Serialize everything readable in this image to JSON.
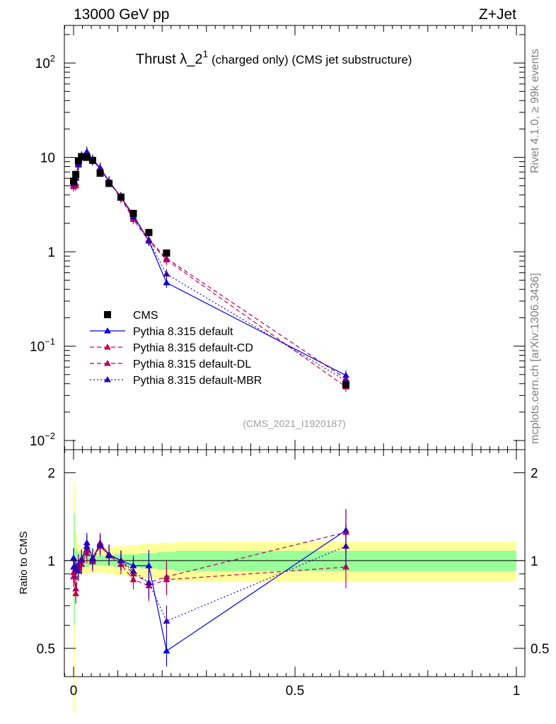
{
  "header": {
    "left": "13000 GeV pp",
    "right": "Z+Jet"
  },
  "side": {
    "rivet": "Rivet 4.1.0, ≥ 99k events",
    "mcplots": "mcplots.cern.ch [arXiv:1306.3436]"
  },
  "plot": {
    "title_main": "Thrust λ_2",
    "title_sup": "1",
    "title_sub": " (charged only) (CMS jet substructure)",
    "analysis": "(CMS_2021_I1920187)"
  },
  "ratio": {
    "ylabel": "Ratio to CMS"
  },
  "chart_data": [
    {
      "type": "scatter",
      "title": "Thrust λ_2^1 (charged only) (CMS jet substructure)",
      "xlabel": "",
      "ylabel": "",
      "yscale": "log",
      "xlim": [
        -0.02,
        1.0
      ],
      "ylim": [
        0.008,
        250
      ],
      "y_tick_labels": [
        "10^-2",
        "10^-1",
        "1",
        "10",
        "10^2"
      ],
      "legend_position": "center-left",
      "series": [
        {
          "name": "CMS",
          "color": "#000000",
          "marker": "square",
          "x": [
            0.0,
            0.005,
            0.011,
            0.018,
            0.03,
            0.043,
            0.06,
            0.08,
            0.107,
            0.135,
            0.17,
            0.21,
            0.615
          ],
          "y": [
            5.6,
            6.6,
            9.2,
            10.2,
            10.0,
            9.3,
            6.8,
            5.3,
            3.8,
            2.55,
            1.6,
            0.97,
            0.039
          ]
        },
        {
          "name": "Pythia 8.315 default",
          "color": "#0000dd",
          "line": "solid",
          "x": [
            0.0,
            0.005,
            0.011,
            0.018,
            0.03,
            0.043,
            0.06,
            0.08,
            0.107,
            0.135,
            0.17,
            0.21,
            0.615
          ],
          "y": [
            5.7,
            6.0,
            8.3,
            9.8,
            11.5,
            9.5,
            7.8,
            5.6,
            3.8,
            2.45,
            1.3,
            0.47,
            0.049
          ]
        },
        {
          "name": "Pythia 8.315 default-CD",
          "color": "#cc0044",
          "line": "dashed",
          "x": [
            0.0,
            0.005,
            0.011,
            0.018,
            0.03,
            0.043,
            0.06,
            0.08,
            0.107,
            0.135,
            0.17,
            0.21,
            0.615
          ],
          "y": [
            5.1,
            5.0,
            8.6,
            9.9,
            10.6,
            9.3,
            7.6,
            5.5,
            3.7,
            2.2,
            1.3,
            0.82,
            0.037
          ]
        },
        {
          "name": "Pythia 8.315 default-DL",
          "color": "#aa0066",
          "line": "dashed",
          "x": [
            0.0,
            0.005,
            0.011,
            0.018,
            0.03,
            0.043,
            0.06,
            0.08,
            0.107,
            0.135,
            0.17,
            0.21,
            0.615
          ],
          "y": [
            4.9,
            5.3,
            8.8,
            10.2,
            10.9,
            9.2,
            7.8,
            5.5,
            3.8,
            2.3,
            1.35,
            0.85,
            0.045
          ]
        },
        {
          "name": "Pythia 8.315 default-MBR",
          "color": "#3300aa",
          "line": "dotted",
          "x": [
            0.0,
            0.005,
            0.011,
            0.018,
            0.03,
            0.043,
            0.06,
            0.08,
            0.107,
            0.135,
            0.17,
            0.21,
            0.615
          ],
          "y": [
            5.3,
            6.2,
            8.5,
            10.3,
            11.2,
            9.4,
            7.7,
            5.5,
            3.8,
            2.35,
            1.3,
            0.58,
            0.043
          ]
        }
      ]
    },
    {
      "type": "line",
      "title": "Ratio to CMS",
      "xlabel": "",
      "ylabel": "Ratio to CMS",
      "yscale": "log",
      "xlim": [
        -0.02,
        1.0
      ],
      "ylim": [
        0.4,
        2.4
      ],
      "x_tick_labels": [
        "0",
        "0.5",
        "1"
      ],
      "y_tick_labels": [
        "0.5",
        "1",
        "2"
      ],
      "bands": {
        "edges": [
          0.0,
          0.003,
          0.008,
          0.014,
          0.022,
          0.036,
          0.05,
          0.07,
          0.09,
          0.12,
          0.15,
          0.19,
          0.23,
          1.0
        ],
        "green_lo": [
          0.6,
          0.9,
          0.93,
          0.95,
          0.95,
          0.96,
          0.96,
          0.96,
          0.95,
          0.95,
          0.94,
          0.93,
          0.92
        ],
        "green_hi": [
          1.45,
          1.1,
          1.07,
          1.05,
          1.05,
          1.04,
          1.04,
          1.04,
          1.05,
          1.05,
          1.06,
          1.07,
          1.08
        ],
        "yellow_lo": [
          0.3,
          0.78,
          0.86,
          0.9,
          0.9,
          0.91,
          0.91,
          0.9,
          0.89,
          0.88,
          0.87,
          0.86,
          0.85
        ],
        "yellow_hi": [
          1.85,
          1.25,
          1.14,
          1.1,
          1.1,
          1.09,
          1.1,
          1.11,
          1.12,
          1.13,
          1.14,
          1.15,
          1.16
        ]
      },
      "series": [
        {
          "name": "Pythia 8.315 default",
          "color": "#0000dd",
          "line": "solid",
          "x": [
            0.0,
            0.005,
            0.011,
            0.018,
            0.03,
            0.043,
            0.06,
            0.08,
            0.107,
            0.135,
            0.17,
            0.21,
            0.615
          ],
          "y": [
            1.02,
            0.93,
            0.97,
            1.0,
            1.15,
            1.02,
            1.14,
            1.05,
            1.0,
            0.96,
            0.96,
            0.49,
            1.27
          ]
        },
        {
          "name": "Pythia 8.315 default-CD",
          "color": "#cc0044",
          "line": "dashed",
          "x": [
            0.0,
            0.005,
            0.011,
            0.018,
            0.03,
            0.043,
            0.06,
            0.08,
            0.107,
            0.135,
            0.17,
            0.21,
            0.615
          ],
          "y": [
            0.91,
            0.77,
            0.94,
            0.97,
            1.06,
            1.0,
            1.12,
            1.04,
            0.97,
            0.86,
            0.82,
            0.86,
            0.95
          ]
        },
        {
          "name": "Pythia 8.315 default-DL",
          "color": "#aa0066",
          "line": "dashed",
          "x": [
            0.0,
            0.005,
            0.011,
            0.018,
            0.03,
            0.043,
            0.06,
            0.08,
            0.107,
            0.135,
            0.17,
            0.21,
            0.615
          ],
          "y": [
            0.88,
            0.8,
            0.96,
            1.0,
            1.09,
            0.99,
            1.15,
            1.04,
            1.0,
            0.9,
            0.84,
            0.88,
            1.25
          ]
        },
        {
          "name": "Pythia 8.315 default-MBR",
          "color": "#3300aa",
          "line": "dotted",
          "x": [
            0.0,
            0.005,
            0.011,
            0.018,
            0.03,
            0.043,
            0.06,
            0.08,
            0.107,
            0.135,
            0.17,
            0.21,
            0.615
          ],
          "y": [
            0.95,
            0.94,
            0.92,
            1.01,
            1.12,
            1.01,
            1.13,
            1.04,
            1.0,
            0.92,
            0.84,
            0.62,
            1.12
          ]
        }
      ]
    }
  ]
}
